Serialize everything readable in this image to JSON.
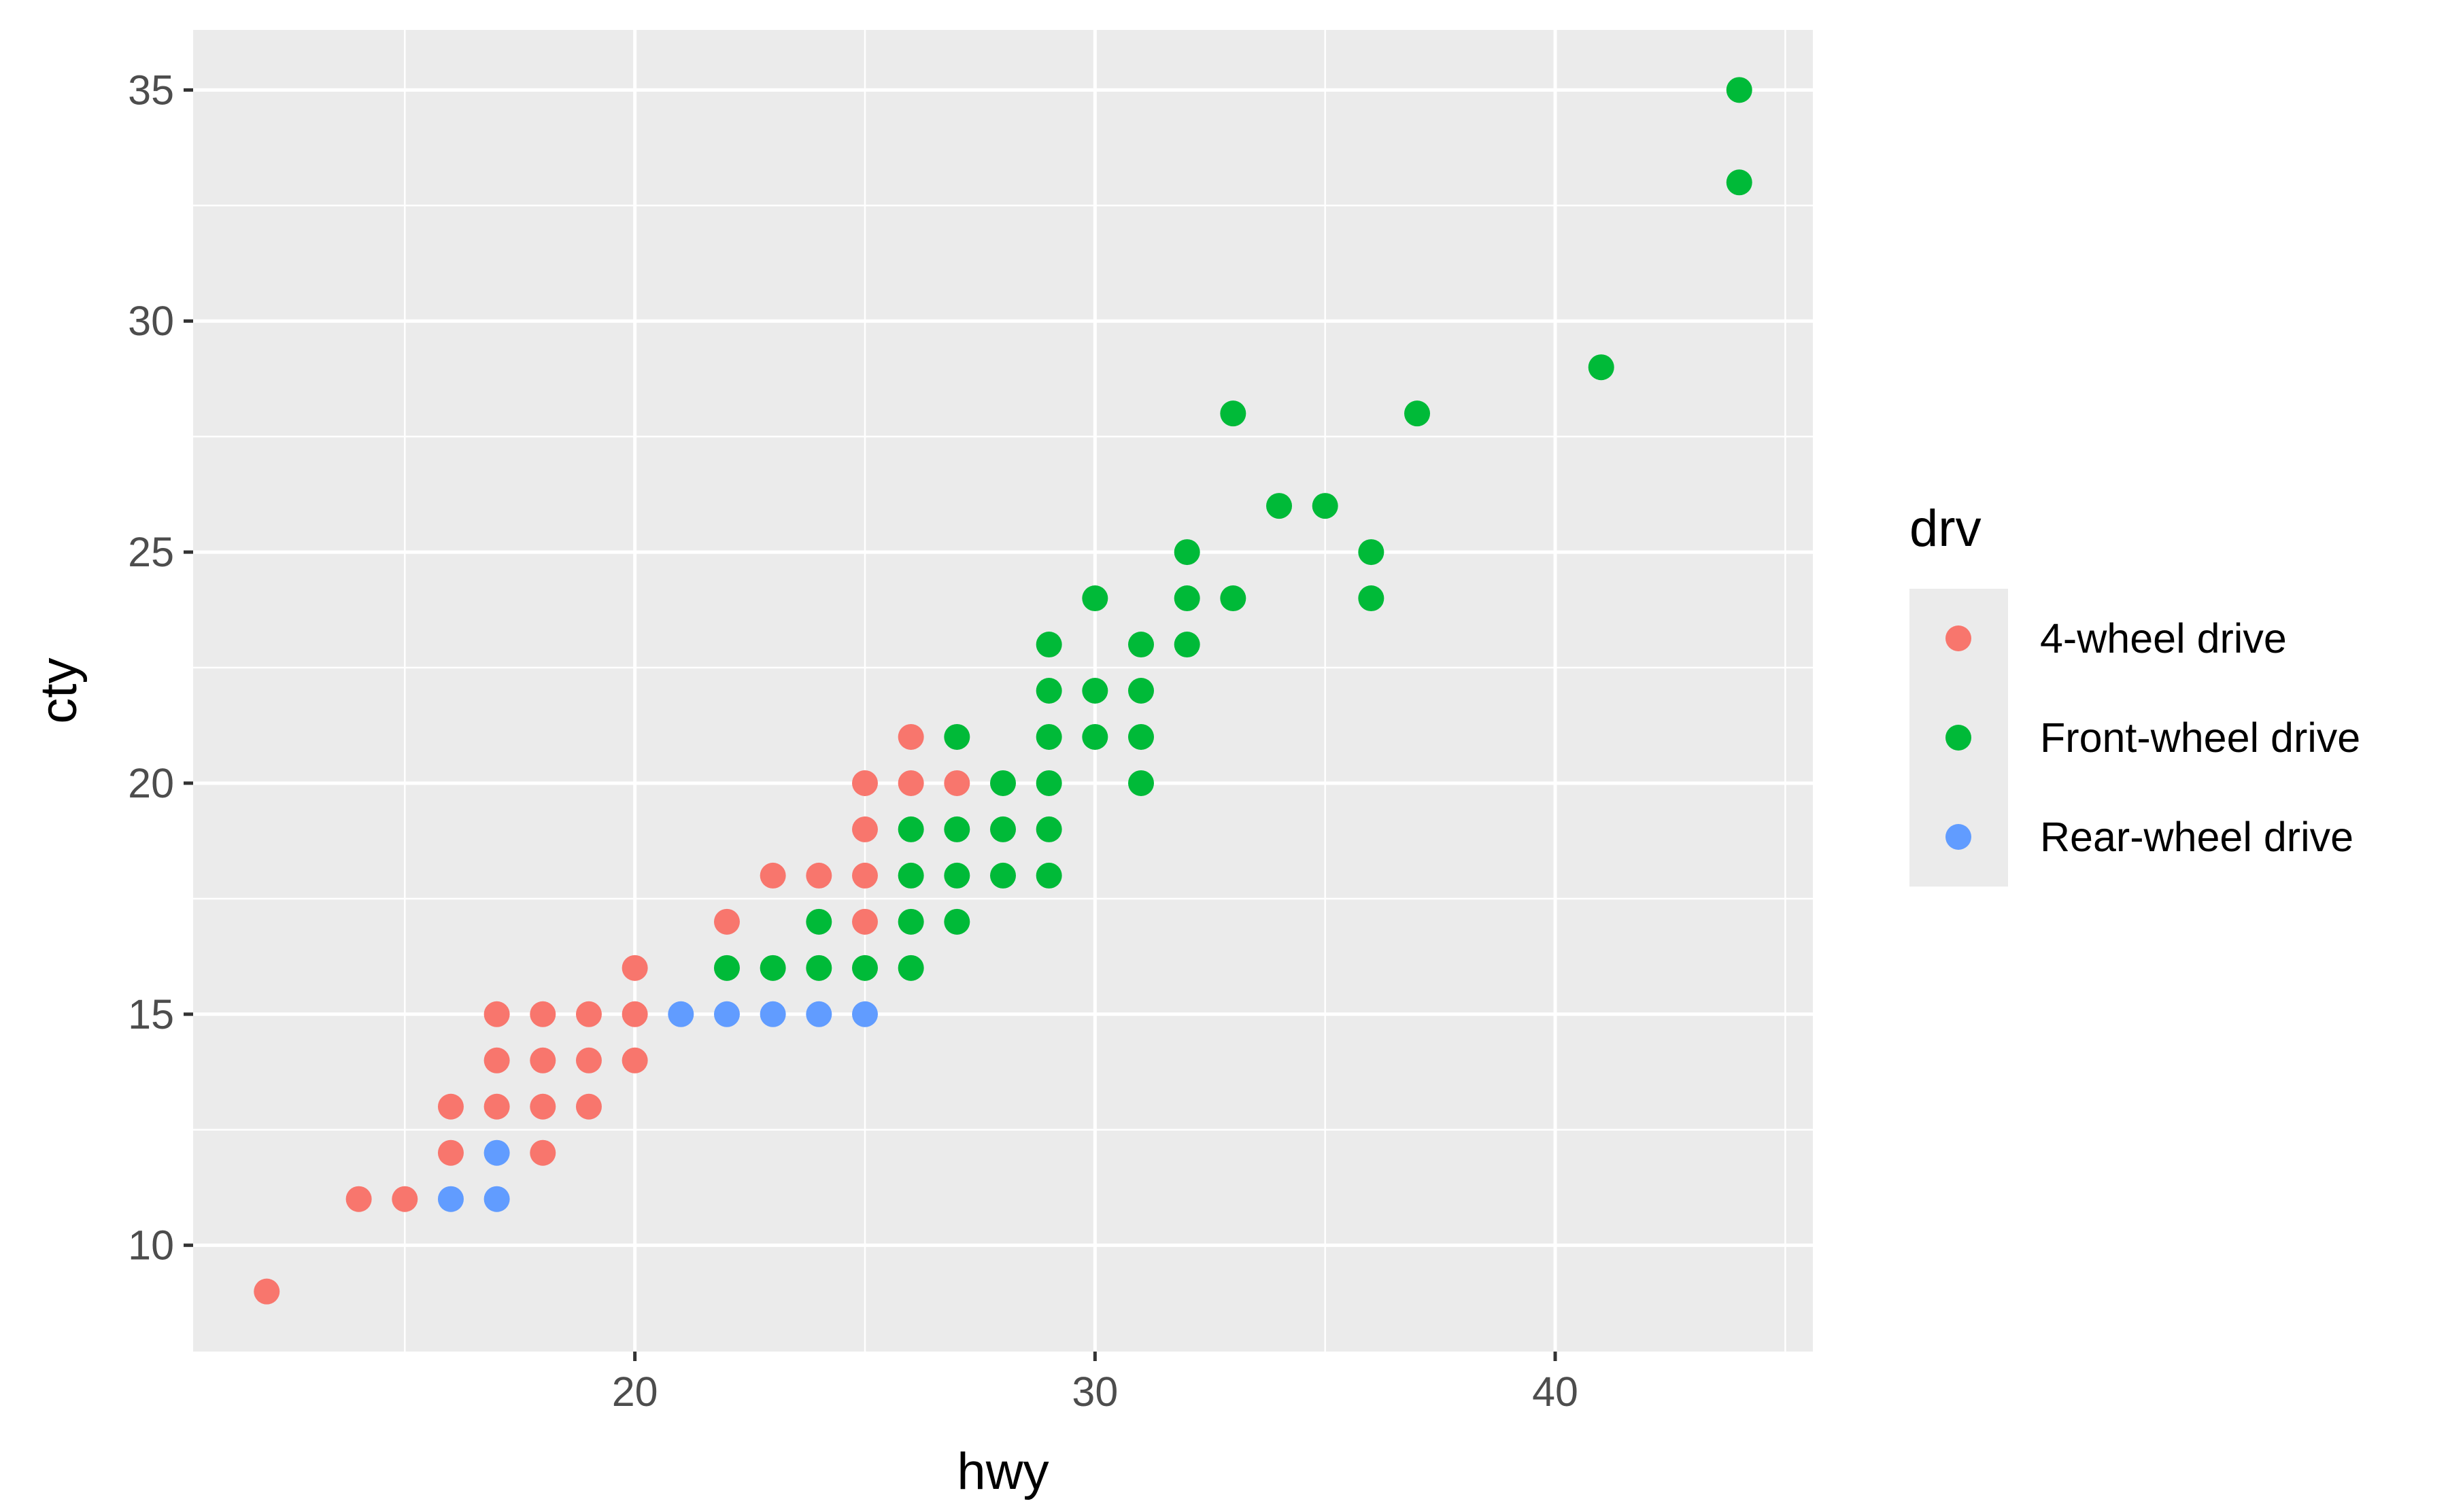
{
  "chart_data": {
    "type": "scatter",
    "title": "",
    "xlabel": "hwy",
    "ylabel": "cty",
    "xlim": [
      10.4,
      45.6
    ],
    "ylim": [
      7.7,
      36.3
    ],
    "x_ticks": [
      20,
      30,
      40
    ],
    "y_ticks": [
      10,
      15,
      20,
      25,
      30,
      35
    ],
    "x_tick_labels": [
      "20",
      "30",
      "40"
    ],
    "y_tick_labels": [
      "10",
      "15",
      "20",
      "25",
      "30",
      "35"
    ],
    "grid": true,
    "legend_placement": "right",
    "legend": {
      "title": "drv",
      "entries": [
        "4-wheel drive",
        "Front-wheel drive",
        "Rear-wheel drive"
      ]
    },
    "series": [
      {
        "name": "4-wheel drive",
        "color": "#F8766D",
        "points": [
          [
            12,
            9
          ],
          [
            14,
            11
          ],
          [
            15,
            11
          ],
          [
            16,
            12
          ],
          [
            16,
            13
          ],
          [
            17,
            13
          ],
          [
            17,
            14
          ],
          [
            17,
            15
          ],
          [
            18,
            12
          ],
          [
            18,
            13
          ],
          [
            18,
            14
          ],
          [
            18,
            15
          ],
          [
            19,
            13
          ],
          [
            19,
            14
          ],
          [
            19,
            15
          ],
          [
            20,
            14
          ],
          [
            20,
            15
          ],
          [
            20,
            16
          ],
          [
            22,
            17
          ],
          [
            23,
            18
          ],
          [
            24,
            18
          ],
          [
            25,
            17
          ],
          [
            25,
            18
          ],
          [
            25,
            19
          ],
          [
            25,
            20
          ],
          [
            26,
            20
          ],
          [
            26,
            21
          ],
          [
            27,
            20
          ]
        ]
      },
      {
        "name": "Front-wheel drive",
        "color": "#00BA38",
        "points": [
          [
            22,
            16
          ],
          [
            23,
            16
          ],
          [
            24,
            16
          ],
          [
            24,
            17
          ],
          [
            25,
            16
          ],
          [
            26,
            16
          ],
          [
            26,
            17
          ],
          [
            26,
            18
          ],
          [
            26,
            19
          ],
          [
            27,
            17
          ],
          [
            27,
            18
          ],
          [
            27,
            19
          ],
          [
            27,
            21
          ],
          [
            28,
            18
          ],
          [
            28,
            19
          ],
          [
            28,
            20
          ],
          [
            29,
            18
          ],
          [
            29,
            19
          ],
          [
            29,
            20
          ],
          [
            29,
            21
          ],
          [
            29,
            22
          ],
          [
            29,
            23
          ],
          [
            30,
            21
          ],
          [
            30,
            22
          ],
          [
            30,
            24
          ],
          [
            31,
            20
          ],
          [
            31,
            21
          ],
          [
            31,
            22
          ],
          [
            31,
            23
          ],
          [
            32,
            23
          ],
          [
            32,
            24
          ],
          [
            32,
            25
          ],
          [
            33,
            24
          ],
          [
            33,
            28
          ],
          [
            34,
            26
          ],
          [
            35,
            26
          ],
          [
            36,
            24
          ],
          [
            36,
            25
          ],
          [
            37,
            28
          ],
          [
            41,
            29
          ],
          [
            44,
            33
          ],
          [
            44,
            35
          ]
        ]
      },
      {
        "name": "Rear-wheel drive",
        "color": "#619CFF",
        "points": [
          [
            16,
            11
          ],
          [
            17,
            11
          ],
          [
            17,
            12
          ],
          [
            21,
            15
          ],
          [
            22,
            15
          ],
          [
            23,
            15
          ],
          [
            24,
            15
          ],
          [
            25,
            15
          ]
        ]
      }
    ]
  }
}
